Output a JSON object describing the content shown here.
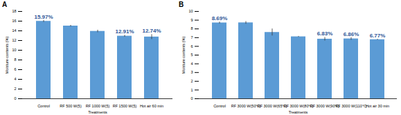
{
  "chart_data": [
    {
      "type": "bar",
      "title": "A",
      "x_label": "Treatments",
      "y_label": "Moisture contents (%)",
      "categories": [
        "Control",
        "RF 500 W(5)",
        "RF 1000 W(5)",
        "RF 1500 W(5)",
        "Hot air 60 min"
      ],
      "values": [
        15.97,
        15.0,
        13.9,
        12.91,
        12.74
      ],
      "errors": [
        0.2,
        0.15,
        0.25,
        0.2,
        0.5
      ],
      "value_labels": [
        "15.97%",
        null,
        null,
        "12.91%",
        "12.74%"
      ],
      "data_labels": true,
      "color": "#5b9bd5",
      "ylim": [
        0,
        18
      ],
      "yticks": [
        0,
        2,
        4,
        6,
        8,
        10,
        12,
        14,
        16,
        18
      ],
      "grid": false
    },
    {
      "type": "bar",
      "title": "B",
      "x_label": "Treatments",
      "y_label": "Moisture contents (%)",
      "categories": [
        "Control",
        "RF 3000 W(50℃)",
        "RF 3000 W(65℃)",
        "RF 3000 W(80℃)",
        "RF 3000 W(90℃)",
        "RF 3000 W(110℃)",
        "Hot air 30 min"
      ],
      "values": [
        8.69,
        8.7,
        7.6,
        7.1,
        6.83,
        6.86,
        6.77
      ],
      "errors": [
        0.1,
        0.15,
        0.4,
        0.05,
        0.2,
        0.15,
        0.05
      ],
      "value_labels": [
        "8.69%",
        null,
        null,
        null,
        "6.83%",
        "6.86%",
        "6.77%"
      ],
      "data_labels": true,
      "color": "#5b9bd5",
      "ylim": [
        0,
        10
      ],
      "yticks": [
        0,
        1,
        2,
        3,
        4,
        5,
        6,
        7,
        8,
        9,
        10
      ],
      "grid": false
    }
  ]
}
